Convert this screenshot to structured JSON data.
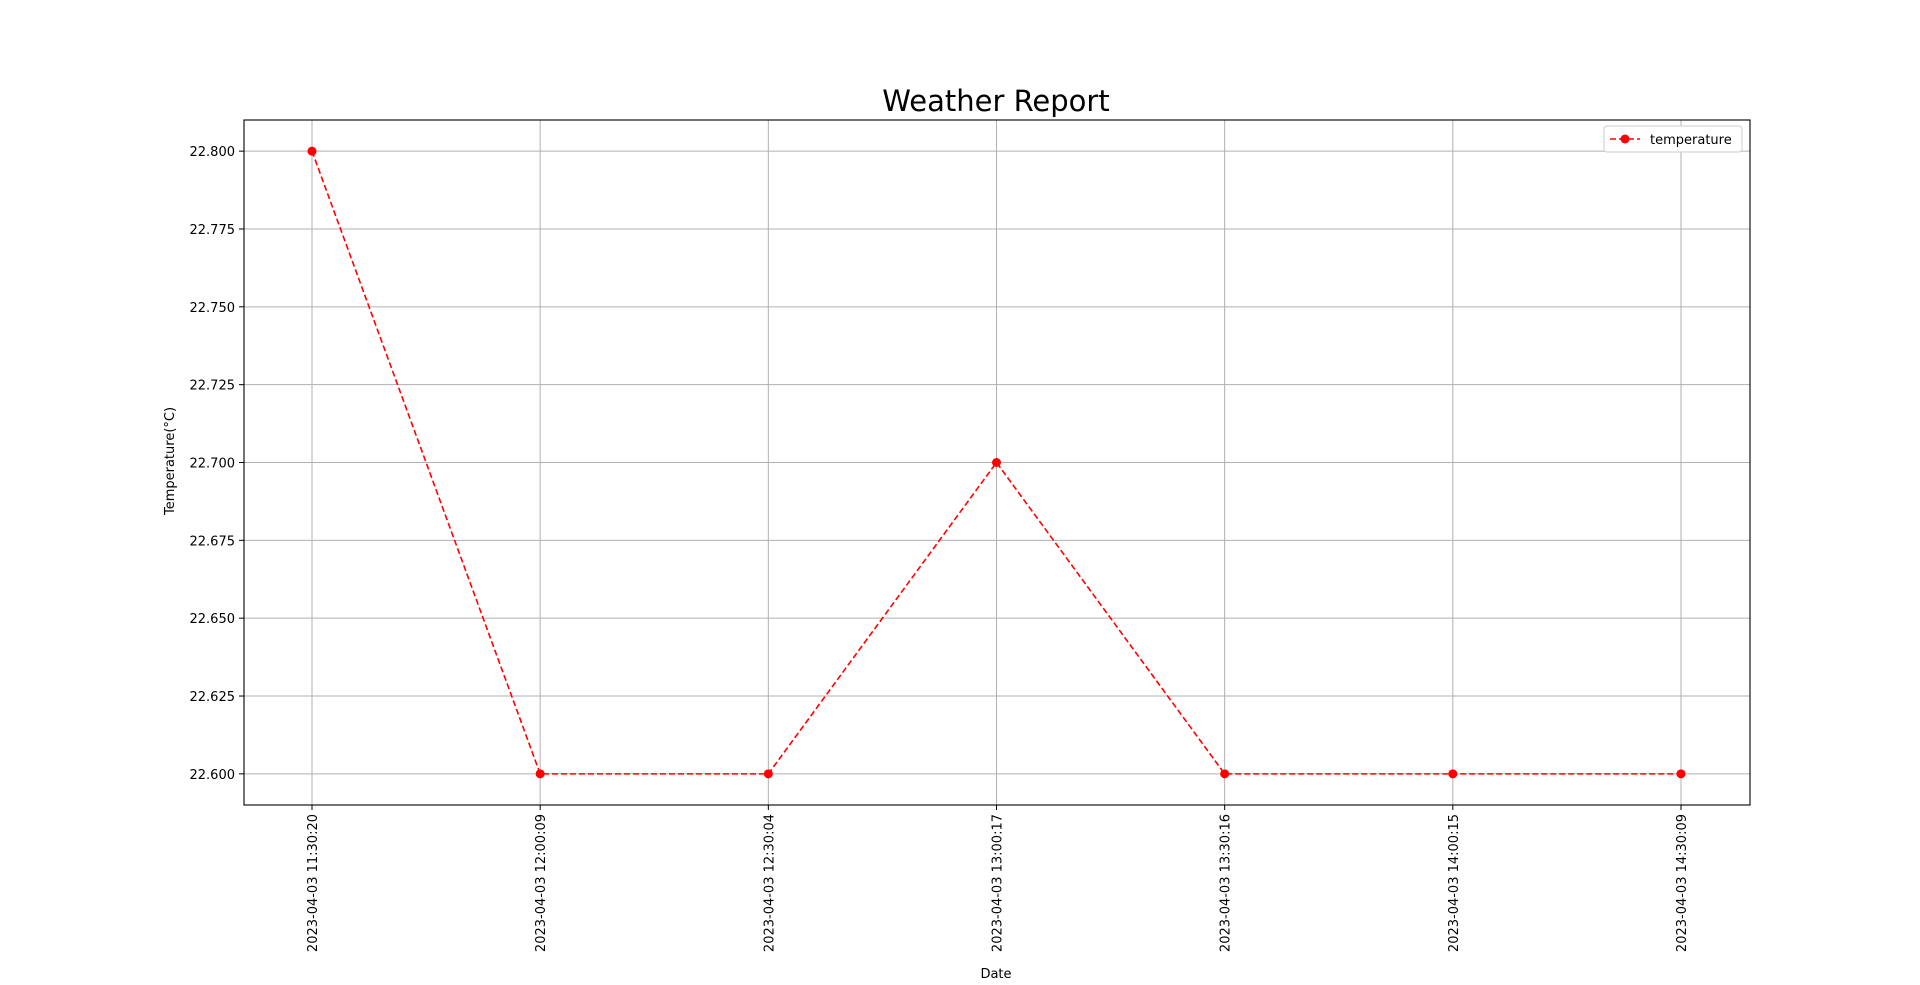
{
  "chart_data": {
    "type": "line",
    "title": "Weather Report",
    "xlabel": "Date",
    "ylabel": "Temperature(°C)",
    "categories": [
      "2023-04-03 11:30:20",
      "2023-04-03 12:00:09",
      "2023-04-03 12:30:04",
      "2023-04-03 13:00:17",
      "2023-04-03 13:30:16",
      "2023-04-03 14:00:15",
      "2023-04-03 14:30:09"
    ],
    "series": [
      {
        "name": "temperature",
        "values": [
          22.8,
          22.6,
          22.6,
          22.7,
          22.6,
          22.6,
          22.6
        ],
        "color": "#ff0000",
        "line_style": "dashed",
        "marker": "circle"
      }
    ],
    "yticks": [
      "22.600",
      "22.625",
      "22.650",
      "22.675",
      "22.700",
      "22.725",
      "22.750",
      "22.775",
      "22.800"
    ],
    "ylim": [
      22.59,
      22.81
    ],
    "grid": true,
    "legend_position": "top-right"
  }
}
